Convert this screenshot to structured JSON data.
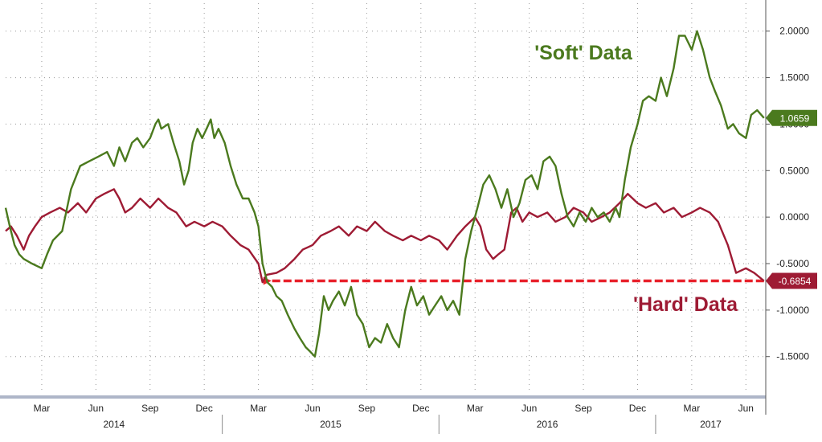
{
  "chart_data": {
    "type": "line",
    "x_axis": {
      "months": [
        "Mar",
        "Jun",
        "Sep",
        "Dec",
        "Mar",
        "Jun",
        "Sep",
        "Dec",
        "Mar",
        "Jun",
        "Sep",
        "Dec",
        "Mar",
        "Jun"
      ],
      "years": [
        "2014",
        "2015",
        "2016",
        "2017"
      ],
      "range": [
        "2014-01",
        "2017-07"
      ]
    },
    "y_axis": {
      "ticks": [
        "2.0000",
        "1.5000",
        "1.0000",
        "0.5000",
        "0.0000",
        "-0.5000",
        "-1.0000",
        "-1.5000"
      ],
      "range": [
        -1.9,
        2.3
      ],
      "position": "right",
      "grid": "dotted"
    },
    "series": [
      {
        "name": "'Soft' Data",
        "color": "#4b7a1e",
        "last_value_label": "1.0659",
        "points": [
          [
            "2014-01-01",
            0.1
          ],
          [
            "2014-01-08",
            -0.1
          ],
          [
            "2014-01-16",
            -0.3
          ],
          [
            "2014-01-24",
            -0.4
          ],
          [
            "2014-02-01",
            -0.45
          ],
          [
            "2014-02-15",
            -0.5
          ],
          [
            "2014-03-01",
            -0.55
          ],
          [
            "2014-03-10",
            -0.4
          ],
          [
            "2014-03-20",
            -0.25
          ],
          [
            "2014-04-05",
            -0.15
          ],
          [
            "2014-04-20",
            0.3
          ],
          [
            "2014-05-05",
            0.55
          ],
          [
            "2014-05-20",
            0.6
          ],
          [
            "2014-06-05",
            0.65
          ],
          [
            "2014-06-20",
            0.7
          ],
          [
            "2014-07-01",
            0.55
          ],
          [
            "2014-07-10",
            0.75
          ],
          [
            "2014-07-20",
            0.6
          ],
          [
            "2014-08-01",
            0.8
          ],
          [
            "2014-08-10",
            0.85
          ],
          [
            "2014-08-20",
            0.75
          ],
          [
            "2014-09-01",
            0.85
          ],
          [
            "2014-09-10",
            1.0
          ],
          [
            "2014-09-15",
            1.05
          ],
          [
            "2014-09-20",
            0.95
          ],
          [
            "2014-10-01",
            1.0
          ],
          [
            "2014-10-10",
            0.8
          ],
          [
            "2014-10-20",
            0.6
          ],
          [
            "2014-10-28",
            0.35
          ],
          [
            "2014-11-05",
            0.5
          ],
          [
            "2014-11-12",
            0.8
          ],
          [
            "2014-11-20",
            0.95
          ],
          [
            "2014-11-28",
            0.85
          ],
          [
            "2014-12-05",
            0.95
          ],
          [
            "2014-12-12",
            1.05
          ],
          [
            "2014-12-18",
            0.85
          ],
          [
            "2014-12-25",
            0.95
          ],
          [
            "2015-01-05",
            0.8
          ],
          [
            "2015-01-15",
            0.55
          ],
          [
            "2015-01-25",
            0.35
          ],
          [
            "2015-02-05",
            0.2
          ],
          [
            "2015-02-15",
            0.2
          ],
          [
            "2015-02-25",
            0.05
          ],
          [
            "2015-03-01",
            -0.1
          ],
          [
            "2015-03-08",
            -0.5
          ],
          [
            "2015-03-16",
            -0.7
          ],
          [
            "2015-03-24",
            -0.75
          ],
          [
            "2015-04-01",
            -0.85
          ],
          [
            "2015-04-10",
            -0.9
          ],
          [
            "2015-04-20",
            -1.05
          ],
          [
            "2015-05-01",
            -1.2
          ],
          [
            "2015-05-10",
            -1.3
          ],
          [
            "2015-05-20",
            -1.4
          ],
          [
            "2015-05-28",
            -1.45
          ],
          [
            "2015-06-05",
            -1.5
          ],
          [
            "2015-06-12",
            -1.25
          ],
          [
            "2015-06-20",
            -0.85
          ],
          [
            "2015-06-28",
            -1.0
          ],
          [
            "2015-07-05",
            -0.9
          ],
          [
            "2015-07-15",
            -0.8
          ],
          [
            "2015-07-25",
            -0.95
          ],
          [
            "2015-08-05",
            -0.75
          ],
          [
            "2015-08-15",
            -1.05
          ],
          [
            "2015-08-25",
            -1.15
          ],
          [
            "2015-09-05",
            -1.4
          ],
          [
            "2015-09-15",
            -1.3
          ],
          [
            "2015-09-25",
            -1.35
          ],
          [
            "2015-10-05",
            -1.15
          ],
          [
            "2015-10-15",
            -1.3
          ],
          [
            "2015-10-25",
            -1.4
          ],
          [
            "2015-11-05",
            -1.0
          ],
          [
            "2015-11-15",
            -0.75
          ],
          [
            "2015-11-25",
            -0.95
          ],
          [
            "2015-12-05",
            -0.85
          ],
          [
            "2015-12-15",
            -1.05
          ],
          [
            "2015-12-25",
            -0.95
          ],
          [
            "2016-01-05",
            -0.85
          ],
          [
            "2016-01-15",
            -1.0
          ],
          [
            "2016-01-25",
            -0.9
          ],
          [
            "2016-02-05",
            -1.05
          ],
          [
            "2016-02-10",
            -0.75
          ],
          [
            "2016-02-15",
            -0.45
          ],
          [
            "2016-02-25",
            -0.15
          ],
          [
            "2016-03-05",
            0.1
          ],
          [
            "2016-03-15",
            0.35
          ],
          [
            "2016-03-25",
            0.45
          ],
          [
            "2016-04-05",
            0.3
          ],
          [
            "2016-04-15",
            0.1
          ],
          [
            "2016-04-25",
            0.3
          ],
          [
            "2016-05-05",
            0.0
          ],
          [
            "2016-05-15",
            0.15
          ],
          [
            "2016-05-25",
            0.4
          ],
          [
            "2016-06-05",
            0.45
          ],
          [
            "2016-06-15",
            0.3
          ],
          [
            "2016-06-25",
            0.6
          ],
          [
            "2016-07-05",
            0.65
          ],
          [
            "2016-07-15",
            0.55
          ],
          [
            "2016-07-25",
            0.25
          ],
          [
            "2016-08-05",
            0.0
          ],
          [
            "2016-08-15",
            -0.1
          ],
          [
            "2016-08-25",
            0.05
          ],
          [
            "2016-09-05",
            -0.05
          ],
          [
            "2016-09-15",
            0.1
          ],
          [
            "2016-09-25",
            0.0
          ],
          [
            "2016-10-05",
            0.05
          ],
          [
            "2016-10-15",
            -0.05
          ],
          [
            "2016-10-25",
            0.1
          ],
          [
            "2016-11-01",
            0.0
          ],
          [
            "2016-11-10",
            0.4
          ],
          [
            "2016-11-20",
            0.75
          ],
          [
            "2016-12-01",
            1.0
          ],
          [
            "2016-12-10",
            1.25
          ],
          [
            "2016-12-20",
            1.3
          ],
          [
            "2017-01-01",
            1.25
          ],
          [
            "2017-01-10",
            1.5
          ],
          [
            "2017-01-20",
            1.3
          ],
          [
            "2017-02-01",
            1.6
          ],
          [
            "2017-02-10",
            1.95
          ],
          [
            "2017-02-20",
            1.95
          ],
          [
            "2017-03-01",
            1.8
          ],
          [
            "2017-03-10",
            2.0
          ],
          [
            "2017-03-20",
            1.8
          ],
          [
            "2017-04-01",
            1.5
          ],
          [
            "2017-04-10",
            1.35
          ],
          [
            "2017-04-20",
            1.2
          ],
          [
            "2017-05-01",
            0.95
          ],
          [
            "2017-05-10",
            1.0
          ],
          [
            "2017-05-20",
            0.9
          ],
          [
            "2017-06-01",
            0.85
          ],
          [
            "2017-06-10",
            1.1
          ],
          [
            "2017-06-20",
            1.15
          ],
          [
            "2017-07-01",
            1.0659
          ]
        ]
      },
      {
        "name": "'Hard' Data",
        "color": "#9e1b34",
        "last_value_label": "-0.6854",
        "points": [
          [
            "2014-01-01",
            -0.15
          ],
          [
            "2014-01-10",
            -0.1
          ],
          [
            "2014-01-20",
            -0.2
          ],
          [
            "2014-02-01",
            -0.35
          ],
          [
            "2014-02-10",
            -0.2
          ],
          [
            "2014-02-20",
            -0.1
          ],
          [
            "2014-03-01",
            0.0
          ],
          [
            "2014-03-15",
            0.05
          ],
          [
            "2014-04-01",
            0.1
          ],
          [
            "2014-04-15",
            0.05
          ],
          [
            "2014-05-01",
            0.15
          ],
          [
            "2014-05-15",
            0.05
          ],
          [
            "2014-06-01",
            0.2
          ],
          [
            "2014-06-15",
            0.25
          ],
          [
            "2014-07-01",
            0.3
          ],
          [
            "2014-07-10",
            0.2
          ],
          [
            "2014-07-20",
            0.05
          ],
          [
            "2014-08-01",
            0.1
          ],
          [
            "2014-08-15",
            0.2
          ],
          [
            "2014-09-01",
            0.1
          ],
          [
            "2014-09-15",
            0.2
          ],
          [
            "2014-10-01",
            0.1
          ],
          [
            "2014-10-15",
            0.05
          ],
          [
            "2014-11-01",
            -0.1
          ],
          [
            "2014-11-15",
            -0.05
          ],
          [
            "2014-12-01",
            -0.1
          ],
          [
            "2014-12-15",
            -0.05
          ],
          [
            "2015-01-01",
            -0.1
          ],
          [
            "2015-01-15",
            -0.2
          ],
          [
            "2015-02-01",
            -0.3
          ],
          [
            "2015-02-15",
            -0.35
          ],
          [
            "2015-03-01",
            -0.5
          ],
          [
            "2015-03-08",
            -0.7
          ],
          [
            "2015-03-15",
            -0.62
          ],
          [
            "2015-04-01",
            -0.6
          ],
          [
            "2015-04-15",
            -0.55
          ],
          [
            "2015-05-01",
            -0.45
          ],
          [
            "2015-05-15",
            -0.35
          ],
          [
            "2015-06-01",
            -0.3
          ],
          [
            "2015-06-15",
            -0.2
          ],
          [
            "2015-07-01",
            -0.15
          ],
          [
            "2015-07-15",
            -0.1
          ],
          [
            "2015-08-01",
            -0.2
          ],
          [
            "2015-08-15",
            -0.1
          ],
          [
            "2015-09-01",
            -0.15
          ],
          [
            "2015-09-15",
            -0.05
          ],
          [
            "2015-10-01",
            -0.15
          ],
          [
            "2015-10-15",
            -0.2
          ],
          [
            "2015-11-01",
            -0.25
          ],
          [
            "2015-11-15",
            -0.2
          ],
          [
            "2015-12-01",
            -0.25
          ],
          [
            "2015-12-15",
            -0.2
          ],
          [
            "2016-01-01",
            -0.25
          ],
          [
            "2016-01-15",
            -0.35
          ],
          [
            "2016-02-01",
            -0.2
          ],
          [
            "2016-02-15",
            -0.1
          ],
          [
            "2016-03-01",
            0.0
          ],
          [
            "2016-03-10",
            -0.1
          ],
          [
            "2016-03-20",
            -0.35
          ],
          [
            "2016-04-01",
            -0.45
          ],
          [
            "2016-04-10",
            -0.4
          ],
          [
            "2016-04-20",
            -0.35
          ],
          [
            "2016-05-01",
            0.05
          ],
          [
            "2016-05-10",
            0.1
          ],
          [
            "2016-05-20",
            -0.05
          ],
          [
            "2016-06-01",
            0.05
          ],
          [
            "2016-06-15",
            0.0
          ],
          [
            "2016-07-01",
            0.05
          ],
          [
            "2016-07-15",
            -0.05
          ],
          [
            "2016-08-01",
            0.0
          ],
          [
            "2016-08-15",
            0.1
          ],
          [
            "2016-09-01",
            0.05
          ],
          [
            "2016-09-15",
            -0.05
          ],
          [
            "2016-10-01",
            0.0
          ],
          [
            "2016-10-15",
            0.05
          ],
          [
            "2016-11-01",
            0.15
          ],
          [
            "2016-11-15",
            0.25
          ],
          [
            "2016-12-01",
            0.15
          ],
          [
            "2016-12-15",
            0.1
          ],
          [
            "2017-01-01",
            0.15
          ],
          [
            "2017-01-15",
            0.05
          ],
          [
            "2017-02-01",
            0.1
          ],
          [
            "2017-02-15",
            0.0
          ],
          [
            "2017-03-01",
            0.05
          ],
          [
            "2017-03-15",
            0.1
          ],
          [
            "2017-04-01",
            0.05
          ],
          [
            "2017-04-15",
            -0.05
          ],
          [
            "2017-05-01",
            -0.3
          ],
          [
            "2017-05-15",
            -0.6
          ],
          [
            "2017-06-01",
            -0.55
          ],
          [
            "2017-06-15",
            -0.6
          ],
          [
            "2017-07-01",
            -0.6854
          ]
        ]
      }
    ],
    "annotations": [
      {
        "text": "'Soft' Data",
        "color": "#4b7a1e"
      },
      {
        "text": "'Hard' Data",
        "color": "#9e1b34"
      }
    ],
    "reference_arrow": {
      "from": "2017-07-01",
      "to": "2015-03-08",
      "value": -0.6854,
      "color": "#e8202a",
      "style": "dashed"
    }
  }
}
